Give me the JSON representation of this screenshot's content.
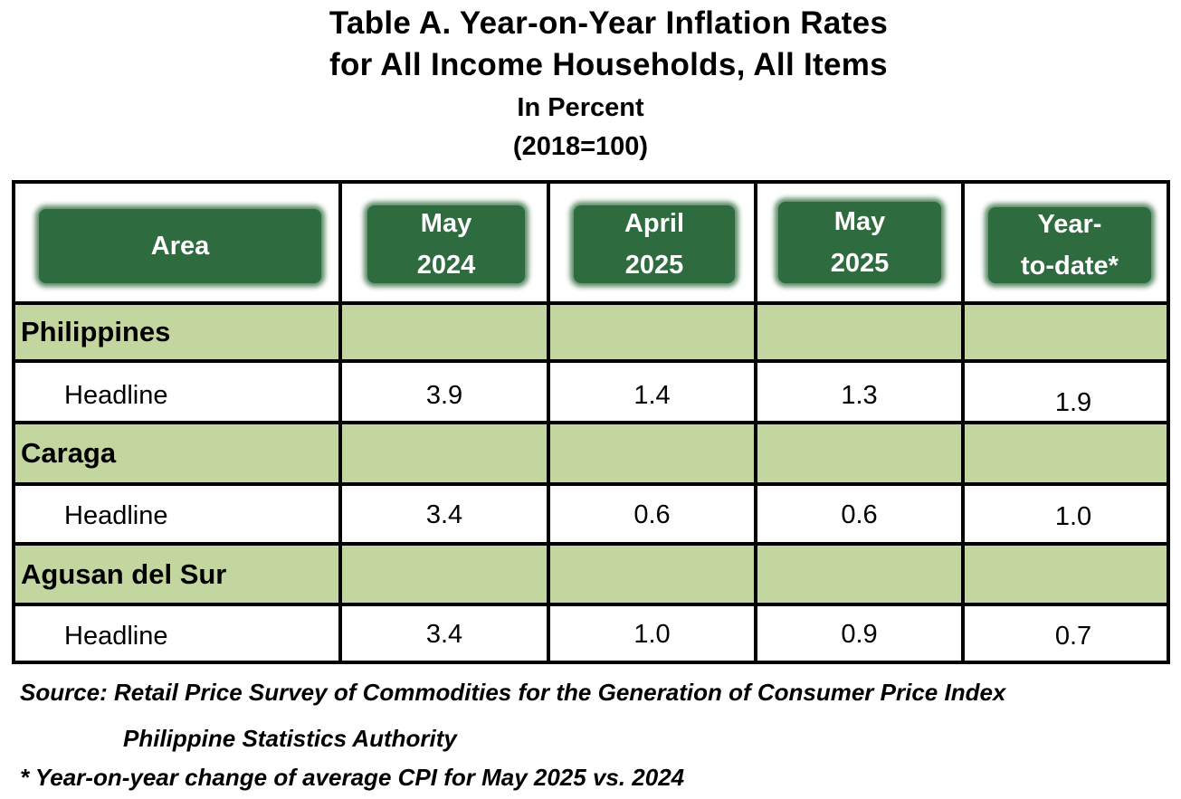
{
  "title": {
    "line1": "Table A. Year-on-Year Inflation Rates",
    "line2": "for All Income Households, All Items"
  },
  "subtitle": {
    "line1": "In Percent",
    "line2": "(2018=100)"
  },
  "table": {
    "columns": [
      {
        "line1": "Area",
        "line2": ""
      },
      {
        "line1": "May",
        "line2": "2024"
      },
      {
        "line1": "April",
        "line2": "2025"
      },
      {
        "line1": "May",
        "line2": "2025"
      },
      {
        "line1": "Year-",
        "line2": "to-date*"
      }
    ],
    "groups": [
      {
        "region": "Philippines",
        "label": "Headline",
        "values": [
          "3.9",
          "1.4",
          "1.3",
          "1.9"
        ]
      },
      {
        "region": "Caraga",
        "label": "Headline",
        "values": [
          "3.4",
          "0.6",
          "0.6",
          "1.0"
        ]
      },
      {
        "region": "Agusan del Sur",
        "label": "Headline",
        "values": [
          "3.4",
          "1.0",
          "0.9",
          "0.7"
        ]
      }
    ]
  },
  "notes": {
    "source_line1": "Source: Retail Price Survey of Commodities for the Generation of Consumer Price Index",
    "source_line2": "Philippine Statistics Authority",
    "footnote": "* Year-on-year change of average CPI for May 2025 vs. 2024"
  },
  "colors": {
    "header_fill": "#2e6b3e",
    "region_band": "#c4d6a0",
    "border": "#000000"
  }
}
